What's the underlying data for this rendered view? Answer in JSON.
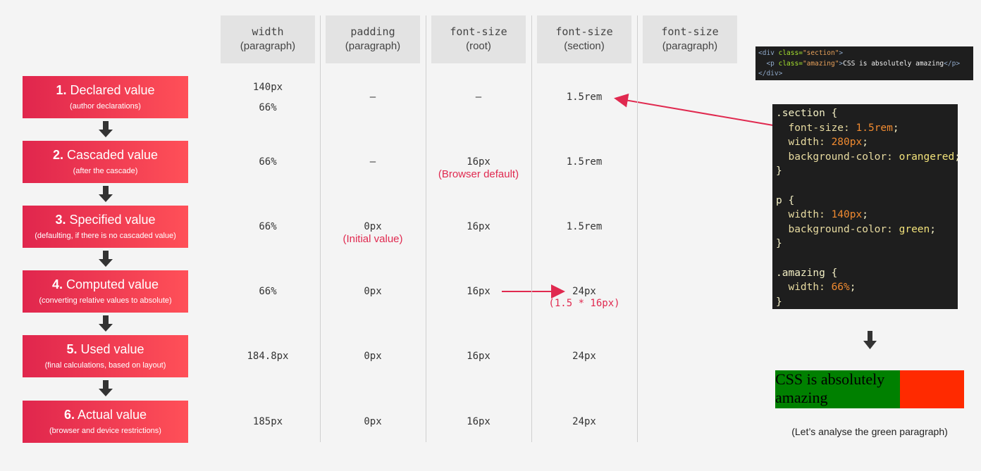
{
  "columns": [
    {
      "name": "width",
      "scope": "(paragraph)"
    },
    {
      "name": "padding",
      "scope": "(paragraph)"
    },
    {
      "name": "font-size",
      "scope": "(root)"
    },
    {
      "name": "font-size",
      "scope": "(section)"
    },
    {
      "name": "font-size",
      "scope": "(paragraph)"
    }
  ],
  "stages": [
    {
      "number": "1.",
      "title": "Declared value",
      "note": "(author declarations)",
      "cells": [
        {
          "lines": [
            "140px",
            "66%"
          ]
        },
        {
          "lines": [
            "—"
          ]
        },
        {
          "lines": [
            "—"
          ]
        },
        {
          "lines": [
            "1.5rem"
          ]
        },
        {
          "lines": []
        }
      ]
    },
    {
      "number": "2.",
      "title": "Cascaded value",
      "note": "(after the cascade)",
      "cells": [
        {
          "lines": [
            "66%"
          ]
        },
        {
          "lines": [
            "—"
          ]
        },
        {
          "lines": [
            "16px"
          ],
          "remark": "(Browser default)"
        },
        {
          "lines": [
            "1.5rem"
          ]
        },
        {
          "lines": []
        }
      ]
    },
    {
      "number": "3.",
      "title": "Specified value",
      "note": "(defaulting, if there is no cascaded value)",
      "cells": [
        {
          "lines": [
            "66%"
          ]
        },
        {
          "lines": [
            "0px"
          ],
          "remark": "(Initial value)"
        },
        {
          "lines": [
            "16px"
          ]
        },
        {
          "lines": [
            "1.5rem"
          ]
        },
        {
          "lines": []
        }
      ]
    },
    {
      "number": "4.",
      "title": "Computed value",
      "note": "(converting relative values to absolute)",
      "cells": [
        {
          "lines": [
            "66%"
          ]
        },
        {
          "lines": [
            "0px"
          ]
        },
        {
          "lines": [
            "16px"
          ]
        },
        {
          "lines": [
            "24px"
          ],
          "remark": "(1.5 * 16px)"
        },
        {
          "lines": []
        }
      ]
    },
    {
      "number": "5.",
      "title": "Used value",
      "note": "(final calculations, based on layout)",
      "cells": [
        {
          "lines": [
            "184.8px"
          ]
        },
        {
          "lines": [
            "0px"
          ]
        },
        {
          "lines": [
            "16px"
          ]
        },
        {
          "lines": [
            "24px"
          ]
        },
        {
          "lines": []
        }
      ]
    },
    {
      "number": "6.",
      "title": "Actual value",
      "note": "(browser and device restrictions)",
      "cells": [
        {
          "lines": [
            "185px"
          ]
        },
        {
          "lines": [
            "0px"
          ]
        },
        {
          "lines": [
            "16px"
          ]
        },
        {
          "lines": [
            "24px"
          ]
        },
        {
          "lines": []
        }
      ]
    }
  ],
  "html_code": [
    [
      {
        "t": "<div",
        "c": "#8fa8c8"
      },
      {
        "t": " class=",
        "c": "#a6e22e"
      },
      {
        "t": "\"section\"",
        "c": "#e6a05a"
      },
      {
        "t": ">",
        "c": "#8fa8c8"
      }
    ],
    [
      {
        "t": "  <p",
        "c": "#8fa8c8"
      },
      {
        "t": " class=",
        "c": "#a6e22e"
      },
      {
        "t": "\"amazing\"",
        "c": "#e6a05a"
      },
      {
        "t": ">",
        "c": "#8fa8c8"
      },
      {
        "t": "CSS is absolutely amazing",
        "c": "#f0f0f0"
      },
      {
        "t": "</p>",
        "c": "#8fa8c8"
      }
    ],
    [
      {
        "t": "</div>",
        "c": "#8fa8c8"
      }
    ]
  ],
  "css_code": [
    [
      {
        "t": ".section {",
        "c": "#f3efc4"
      }
    ],
    [
      {
        "t": "  font-size: ",
        "c": "#e8dba0"
      },
      {
        "t": "1.5rem",
        "c": "#f08a30"
      },
      {
        "t": ";",
        "c": "#f3efc4"
      }
    ],
    [
      {
        "t": "  width: ",
        "c": "#e8dba0"
      },
      {
        "t": "280px",
        "c": "#f08a30"
      },
      {
        "t": ";",
        "c": "#f3efc4"
      }
    ],
    [
      {
        "t": "  background-color: ",
        "c": "#e8dba0"
      },
      {
        "t": "orangered",
        "c": "#f2e27a"
      },
      {
        "t": ";",
        "c": "#f3efc4"
      }
    ],
    [
      {
        "t": "}",
        "c": "#f3efc4"
      }
    ],
    [],
    [
      {
        "t": "p {",
        "c": "#f3efc4"
      }
    ],
    [
      {
        "t": "  width: ",
        "c": "#e8dba0"
      },
      {
        "t": "140px",
        "c": "#f08a30"
      },
      {
        "t": ";",
        "c": "#f3efc4"
      }
    ],
    [
      {
        "t": "  background-color: ",
        "c": "#e8dba0"
      },
      {
        "t": "green",
        "c": "#f2e27a"
      },
      {
        "t": ";",
        "c": "#f3efc4"
      }
    ],
    [
      {
        "t": "}",
        "c": "#f3efc4"
      }
    ],
    [],
    [
      {
        "t": ".amazing {",
        "c": "#f3efc4"
      }
    ],
    [
      {
        "t": "  width: ",
        "c": "#e8dba0"
      },
      {
        "t": "66%",
        "c": "#f08a30"
      },
      {
        "t": ";",
        "c": "#f3efc4"
      }
    ],
    [
      {
        "t": "}",
        "c": "#f3efc4"
      }
    ]
  ],
  "result": {
    "text": "CSS is absolutely amazing",
    "caption": "(Let’s analyse the green paragraph)"
  }
}
